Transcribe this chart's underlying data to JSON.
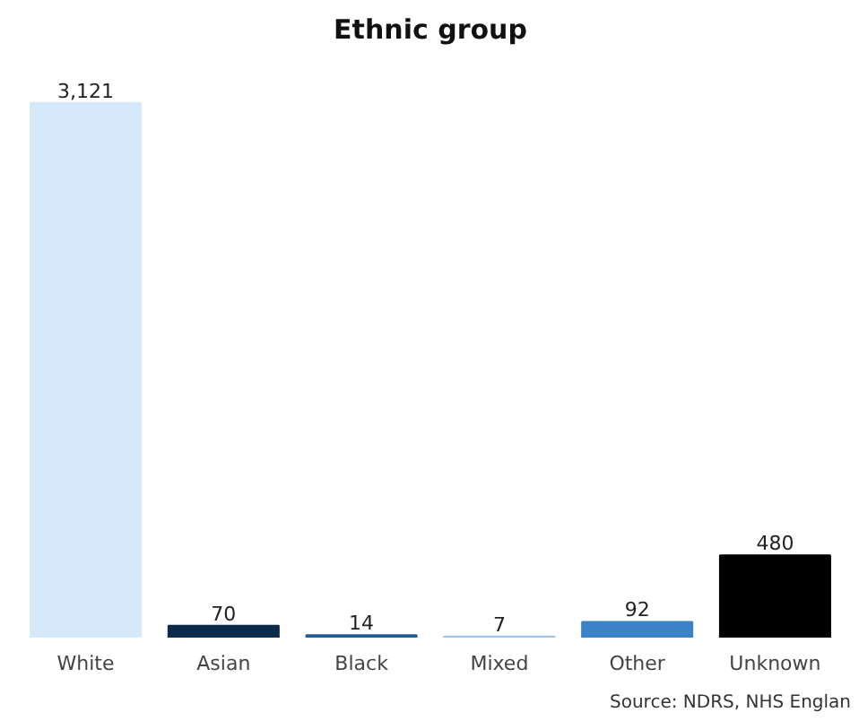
{
  "chart_data": {
    "type": "bar",
    "title": "Ethnic group",
    "categories": [
      "White",
      "Asian",
      "Black",
      "Mixed",
      "Other",
      "Unknown"
    ],
    "values": [
      3121,
      70,
      14,
      7,
      92,
      480
    ],
    "colors": [
      "#d6e9fb",
      "#0e2a4a",
      "#1f5c99",
      "#9fc5e8",
      "#3b82c8",
      "#000000"
    ],
    "value_labels": [
      "3,121",
      "70",
      "14",
      "7",
      "92",
      "480"
    ],
    "grid": false,
    "annotations": [
      "Source: NDRS, NHS Englan"
    ]
  }
}
